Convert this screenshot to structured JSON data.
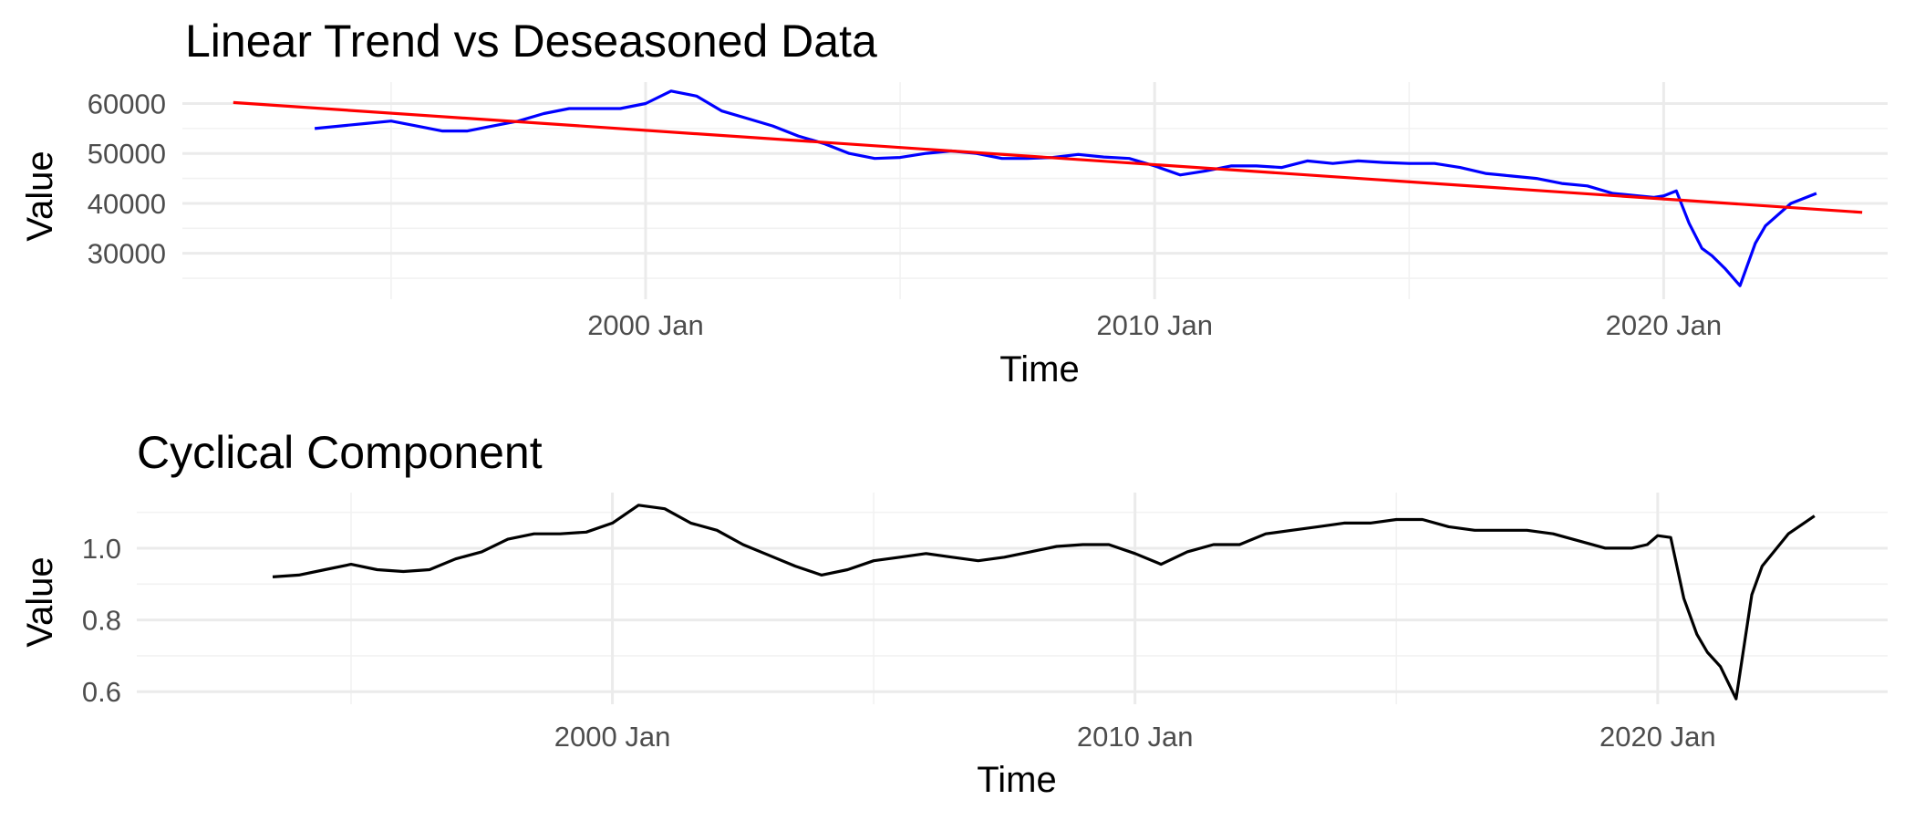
{
  "chart_data": [
    {
      "type": "line",
      "title": "Linear Trend vs Deseasoned Data",
      "xlabel": "Time",
      "ylabel": "Value",
      "x_ticks": [
        "2000 Jan",
        "2010 Jan",
        "2020 Jan"
      ],
      "y_ticks": [
        "30000",
        "40000",
        "50000",
        "60000"
      ],
      "xlim": [
        1990.9,
        2024.4
      ],
      "ylim": [
        20800,
        64300
      ],
      "grid": true,
      "legend": "none",
      "series": [
        {
          "color": "#0000ff",
          "x": [
            1993.5,
            1994.0,
            1994.5,
            1995.0,
            1995.5,
            1996.0,
            1996.5,
            1997.0,
            1997.5,
            1998.0,
            1998.5,
            1999.0,
            1999.5,
            2000.0,
            2000.5,
            2001.0,
            2001.5,
            2002.0,
            2002.5,
            2003.0,
            2003.5,
            2004.0,
            2004.5,
            2005.0,
            2005.5,
            2006.0,
            2006.5,
            2007.0,
            2007.5,
            2008.0,
            2008.5,
            2009.0,
            2009.5,
            2010.0,
            2010.5,
            2011.0,
            2011.5,
            2012.0,
            2012.5,
            2013.0,
            2013.5,
            2014.0,
            2014.5,
            2015.0,
            2015.5,
            2016.0,
            2016.5,
            2017.0,
            2017.5,
            2018.0,
            2018.5,
            2019.0,
            2019.5,
            2019.8,
            2020.0,
            2020.25,
            2020.5,
            2020.75,
            2020.95,
            2021.2,
            2021.5,
            2021.8,
            2022.0,
            2022.5,
            2023.0
          ],
          "y": [
            55000,
            55500,
            56000,
            56500,
            55500,
            54500,
            54500,
            55500,
            56500,
            58000,
            59000,
            59000,
            59000,
            60000,
            62500,
            61500,
            58500,
            57000,
            55500,
            53500,
            52000,
            50000,
            49000,
            49200,
            50000,
            50500,
            50000,
            49000,
            49000,
            49200,
            49800,
            49300,
            49000,
            47500,
            45700,
            46500,
            47500,
            47500,
            47200,
            48500,
            48000,
            48500,
            48200,
            48000,
            48000,
            47200,
            46000,
            45500,
            45000,
            44000,
            43500,
            42000,
            41500,
            41200,
            41500,
            42500,
            36000,
            31000,
            29500,
            27000,
            23500,
            32000,
            35500,
            40000,
            42000
          ]
        },
        {
          "color": "#ff0000",
          "x": [
            1991.9,
            2023.9
          ],
          "y": [
            60200,
            38200
          ]
        }
      ]
    },
    {
      "type": "line",
      "title": "Cyclical Component",
      "xlabel": "Time",
      "ylabel": "Value",
      "x_ticks": [
        "2000 Jan",
        "2010 Jan",
        "2020 Jan"
      ],
      "y_ticks": [
        "0.6",
        "0.8",
        "1.0"
      ],
      "xlim": [
        1990.9,
        2024.4
      ],
      "ylim": [
        0.565,
        1.155
      ],
      "grid": true,
      "legend": "none",
      "series": [
        {
          "color": "#000000",
          "x": [
            1993.5,
            1994.0,
            1994.5,
            1995.0,
            1995.5,
            1996.0,
            1996.5,
            1997.0,
            1997.5,
            1998.0,
            1998.5,
            1999.0,
            1999.5,
            2000.0,
            2000.5,
            2001.0,
            2001.5,
            2002.0,
            2002.5,
            2003.0,
            2003.5,
            2004.0,
            2004.5,
            2005.0,
            2005.5,
            2006.0,
            2006.5,
            2007.0,
            2007.5,
            2008.0,
            2008.5,
            2009.0,
            2009.5,
            2010.0,
            2010.5,
            2011.0,
            2011.5,
            2012.0,
            2012.5,
            2013.0,
            2013.5,
            2014.0,
            2014.5,
            2015.0,
            2015.5,
            2016.0,
            2016.5,
            2017.0,
            2017.5,
            2018.0,
            2018.5,
            2019.0,
            2019.5,
            2019.8,
            2020.0,
            2020.25,
            2020.5,
            2020.75,
            2020.95,
            2021.2,
            2021.5,
            2021.8,
            2022.0,
            2022.5,
            2023.0
          ],
          "y": [
            0.92,
            0.925,
            0.94,
            0.955,
            0.94,
            0.935,
            0.94,
            0.97,
            0.99,
            1.025,
            1.04,
            1.04,
            1.045,
            1.07,
            1.12,
            1.11,
            1.07,
            1.05,
            1.01,
            0.98,
            0.95,
            0.925,
            0.94,
            0.965,
            0.975,
            0.985,
            0.975,
            0.965,
            0.975,
            0.99,
            1.005,
            1.01,
            1.01,
            0.985,
            0.955,
            0.99,
            1.01,
            1.01,
            1.04,
            1.05,
            1.06,
            1.07,
            1.07,
            1.08,
            1.08,
            1.06,
            1.05,
            1.05,
            1.05,
            1.04,
            1.02,
            1.0,
            1.0,
            1.01,
            1.035,
            1.03,
            0.86,
            0.76,
            0.71,
            0.67,
            0.58,
            0.87,
            0.95,
            1.04,
            1.09
          ]
        }
      ]
    }
  ]
}
